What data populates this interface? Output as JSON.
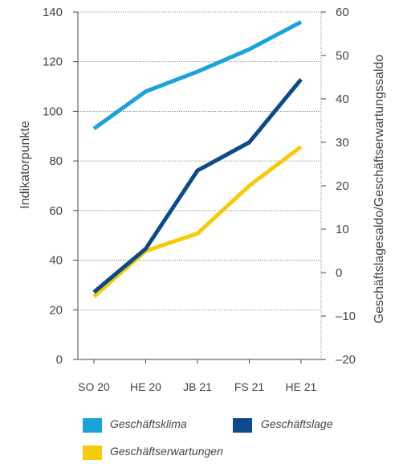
{
  "chart_data": {
    "type": "line",
    "categories": [
      "SO 20",
      "HE 20",
      "JB 21",
      "FS 21",
      "HE 21"
    ],
    "ylabel_left": "Indikatorpunkte",
    "ylabel_right": "Geschäftslagesaldo/Geschäftserwartungssaldo",
    "ylim_left": [
      0,
      140
    ],
    "yticks_left": [
      0,
      20,
      40,
      60,
      80,
      100,
      120,
      140
    ],
    "ylim_right": [
      -20,
      60
    ],
    "yticks_right": [
      -20,
      -10,
      0,
      10,
      20,
      30,
      40,
      50,
      60
    ],
    "ytick_labels_right": [
      "–20",
      "–10",
      "0",
      "10",
      "20",
      "30",
      "40",
      "50",
      "60"
    ],
    "grid": true,
    "legend_position": "bottom",
    "series": [
      {
        "name": "Geschäftsklima",
        "axis": "left",
        "color": "#1aa3d9",
        "values": [
          93,
          108,
          116,
          125,
          136
        ]
      },
      {
        "name": "Geschäftslage",
        "axis": "right",
        "color": "#0d4a8a",
        "values": [
          -4.5,
          5.5,
          23.5,
          30,
          44.5
        ]
      },
      {
        "name": "Geschäftserwartungen",
        "axis": "right",
        "color": "#f5cc0a",
        "values": [
          -5.5,
          5,
          9,
          20,
          29
        ]
      }
    ]
  }
}
